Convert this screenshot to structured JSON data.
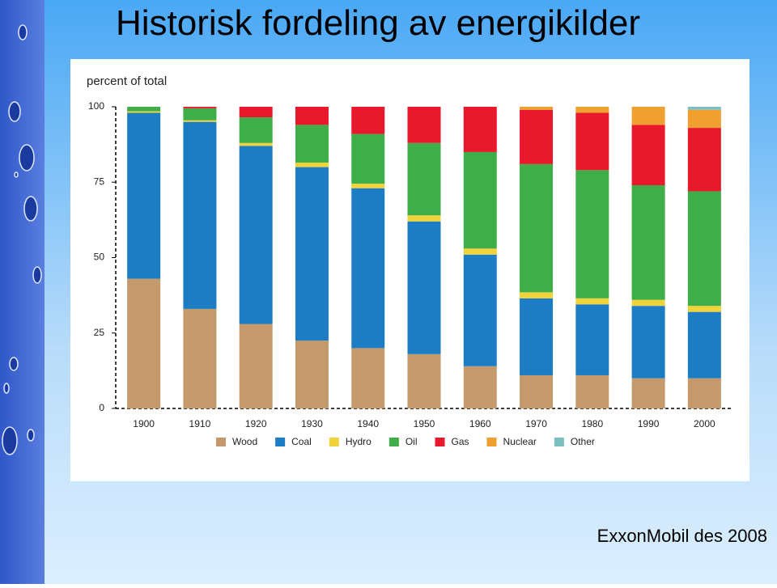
{
  "chart_data": {
    "type": "stacked-bar",
    "title": "Historisk fordeling av energikilder",
    "ylabel": "percent of total",
    "categories": [
      "1900",
      "1910",
      "1920",
      "1930",
      "1940",
      "1950",
      "1960",
      "1970",
      "1980",
      "1990",
      "2000"
    ],
    "series": [
      {
        "name": "Wood",
        "color": "#c49a6c",
        "values": [
          43,
          33,
          28,
          22.5,
          20,
          18,
          14,
          11,
          11,
          10,
          10
        ]
      },
      {
        "name": "Coal",
        "color": "#1d7dc4",
        "values": [
          55,
          62,
          59,
          57.5,
          53,
          44,
          37,
          25.5,
          23.5,
          24,
          22
        ]
      },
      {
        "name": "Hydro",
        "color": "#f0d33a",
        "values": [
          0.5,
          0.5,
          1,
          1.5,
          1.5,
          2,
          2,
          2,
          2,
          2,
          2
        ]
      },
      {
        "name": "Oil",
        "color": "#3fae49",
        "values": [
          1.5,
          4,
          8.5,
          12.5,
          16.5,
          24,
          32,
          42.5,
          42.5,
          38,
          38
        ]
      },
      {
        "name": "Gas",
        "color": "#e8192c",
        "values": [
          0,
          0.5,
          3.5,
          6,
          9,
          12,
          15,
          18,
          19,
          20,
          21
        ]
      },
      {
        "name": "Nuclear",
        "color": "#f0a030",
        "values": [
          0,
          0,
          0,
          0,
          0,
          0,
          0,
          1,
          2,
          6,
          6
        ]
      },
      {
        "name": "Other",
        "color": "#7dbfc0",
        "values": [
          0,
          0,
          0,
          0,
          0,
          0,
          0,
          0,
          0,
          0,
          1
        ]
      }
    ],
    "ylim": [
      0,
      100
    ],
    "yticks": [
      0,
      25,
      50,
      75,
      100
    ]
  },
  "footer": "ExxonMobil des 2008"
}
